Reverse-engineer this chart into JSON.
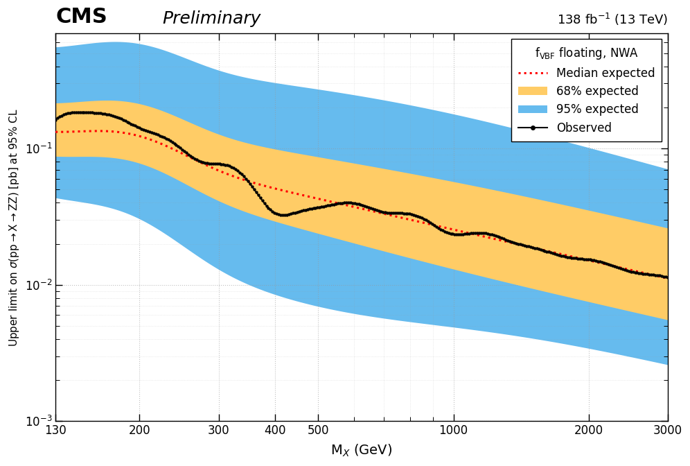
{
  "title_cms": "CMS",
  "title_prelim": "Preliminary",
  "title_lumi": "138 fb$^{-1}$ (13 TeV)",
  "xlabel": "M$_{X}$ (GeV)",
  "ylabel": "Upper limit on $\\sigma$(pp$\\rightarrow$X$\\rightarrow$ZZ) [pb] at 95% CL",
  "legend_title": "f$_{\\mathrm{VBF}}$ floating, NWA",
  "xlim": [
    130,
    3000
  ],
  "ylim": [
    0.001,
    0.7
  ],
  "color_68": "#FFCC66",
  "color_95": "#66BBEE",
  "color_obs": "#000000",
  "color_exp": "#FF0000",
  "bg_color": "#FFFFFF",
  "grid_color": "#999999"
}
